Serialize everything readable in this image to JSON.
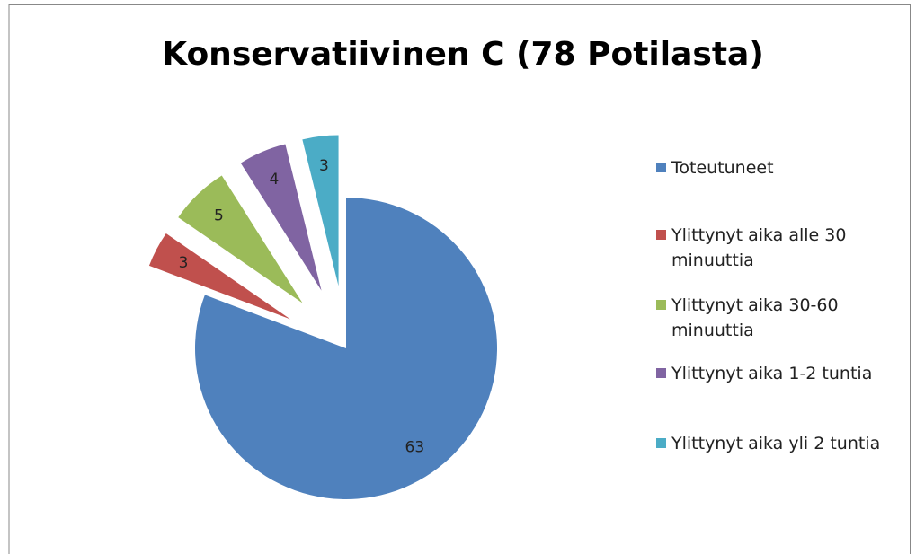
{
  "chart_data": {
    "type": "pie",
    "title": "Konservatiivinen C (78 Potilasta)",
    "categories": [
      "Toteutuneet",
      "Ylittynyt aika alle 30 minuuttia",
      "Ylittynyt aika 30-60 minuuttia",
      "Ylittynyt aika 1-2 tuntia",
      "Ylittynyt aika yli 2 tuntia"
    ],
    "values": [
      63,
      3,
      5,
      4,
      3
    ],
    "colors": [
      "#4f81bd",
      "#c0504d",
      "#9bbb59",
      "#8064a2",
      "#4bacc6"
    ]
  }
}
